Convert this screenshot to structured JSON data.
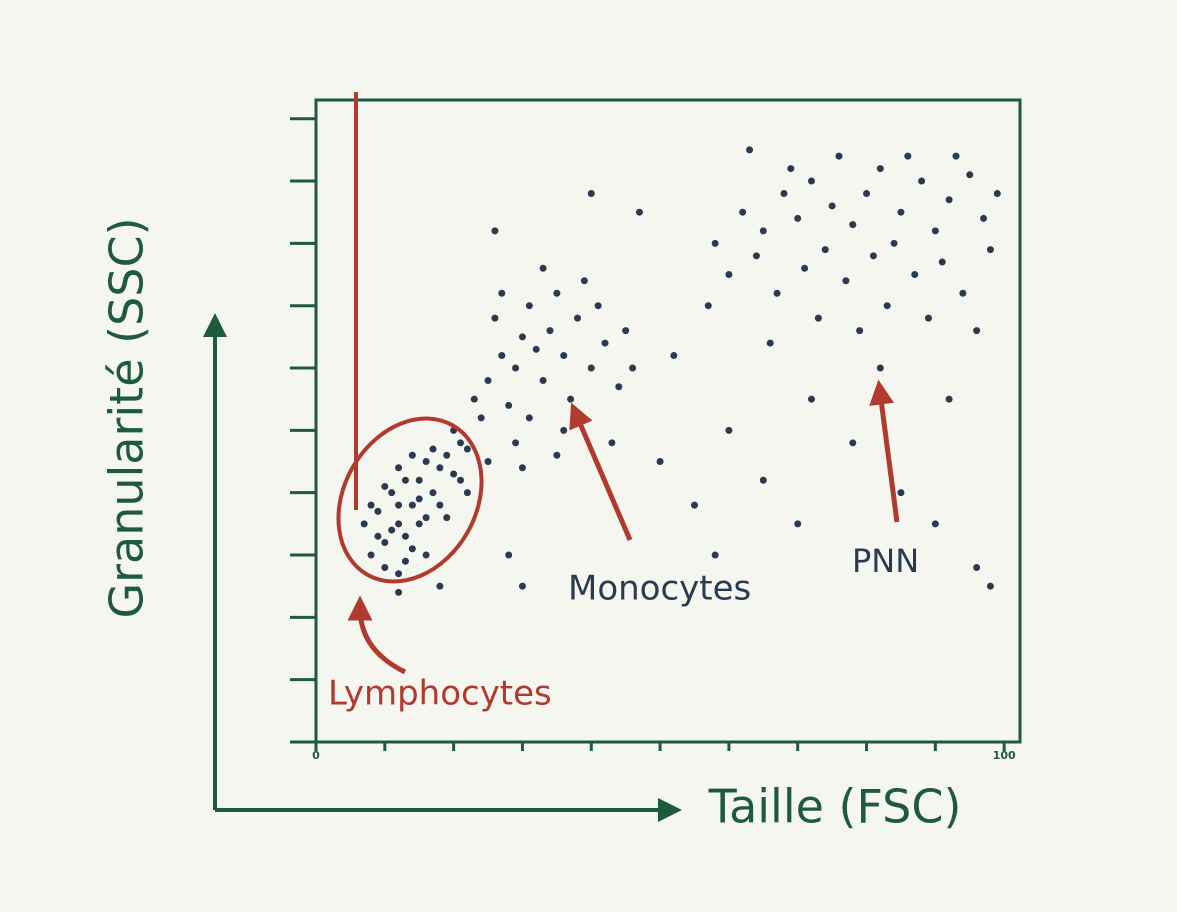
{
  "chart_data": {
    "type": "scatter",
    "x_label": "Taille (FSC)",
    "y_label": "Granularité (SSC)",
    "color": "#2a3b50",
    "xlim": [
      0,
      102.3
    ],
    "ylim": [
      0,
      103
    ],
    "xticks": [
      0,
      {
        "value": 10,
        "label": null
      },
      {
        "value": 20,
        "label": null
      },
      {
        "value": 30,
        "label": null
      },
      {
        "value": 40,
        "label": null
      },
      {
        "value": 50,
        "label": null
      },
      {
        "value": 60,
        "label": null
      },
      {
        "value": 70,
        "label": null
      },
      {
        "value": 80,
        "label": null
      },
      {
        "value": 90,
        "label": null
      },
      100
    ],
    "yticks": [
      {
        "value": 0,
        "label": null
      },
      {
        "value": 10,
        "label": null
      },
      {
        "value": 20,
        "label": null
      },
      {
        "value": 30,
        "label": null
      },
      {
        "value": 40,
        "label": null
      },
      {
        "value": 50,
        "label": null
      },
      {
        "value": 60,
        "label": null
      },
      {
        "value": 70,
        "label": null
      },
      {
        "value": 80,
        "label": null
      },
      {
        "value": 90,
        "label": null
      },
      {
        "value": 100,
        "label": null
      }
    ],
    "annotations": [
      "Lymphocytes",
      "Monocytes",
      "PNN"
    ],
    "x": [
      8,
      10,
      12,
      9,
      11,
      13,
      14,
      15,
      12,
      16,
      17,
      10,
      13,
      18,
      19,
      11,
      14,
      16,
      9,
      12,
      15,
      17,
      20,
      7,
      13,
      18,
      21,
      10,
      14,
      16,
      19,
      8,
      12,
      15,
      22,
      20,
      23,
      25,
      27,
      29,
      30,
      32,
      28,
      26,
      31,
      34,
      36,
      33,
      24,
      22,
      35,
      38,
      40,
      37,
      29,
      42,
      39,
      27,
      31,
      44,
      45,
      25,
      33,
      41,
      21,
      36,
      43,
      30,
      46,
      35,
      58,
      62,
      65,
      68,
      70,
      72,
      75,
      78,
      80,
      82,
      85,
      88,
      90,
      92,
      95,
      97,
      60,
      64,
      67,
      71,
      74,
      77,
      81,
      84,
      87,
      91,
      94,
      98,
      69,
      76,
      86,
      93,
      73,
      79,
      83,
      89,
      96,
      66,
      57,
      99,
      50,
      55,
      60,
      65,
      72,
      78,
      85,
      90,
      96,
      98,
      58,
      70,
      82,
      52,
      47,
      40,
      26,
      63,
      92,
      30,
      28,
      12,
      18
    ],
    "values": [
      30,
      32,
      35,
      37,
      40,
      33,
      38,
      42,
      44,
      36,
      40,
      28,
      29,
      44,
      46,
      34,
      31,
      45,
      33,
      38,
      35,
      47,
      43,
      35,
      42,
      38,
      48,
      41,
      46,
      30,
      36,
      38,
      27,
      39,
      40,
      50,
      55,
      58,
      62,
      60,
      65,
      63,
      54,
      68,
      70,
      66,
      62,
      58,
      52,
      47,
      72,
      68,
      60,
      55,
      48,
      64,
      74,
      72,
      52,
      57,
      66,
      45,
      76,
      70,
      42,
      50,
      48,
      44,
      60,
      46,
      80,
      85,
      82,
      88,
      84,
      90,
      86,
      83,
      88,
      92,
      85,
      90,
      82,
      87,
      91,
      84,
      75,
      78,
      72,
      76,
      79,
      74,
      78,
      80,
      75,
      77,
      72,
      79,
      92,
      94,
      94,
      94,
      68,
      66,
      70,
      68,
      66,
      64,
      70,
      88,
      45,
      38,
      50,
      42,
      55,
      48,
      40,
      35,
      28,
      25,
      30,
      35,
      60,
      62,
      85,
      88,
      82,
      95,
      55,
      25,
      30,
      24,
      25
    ]
  }
}
